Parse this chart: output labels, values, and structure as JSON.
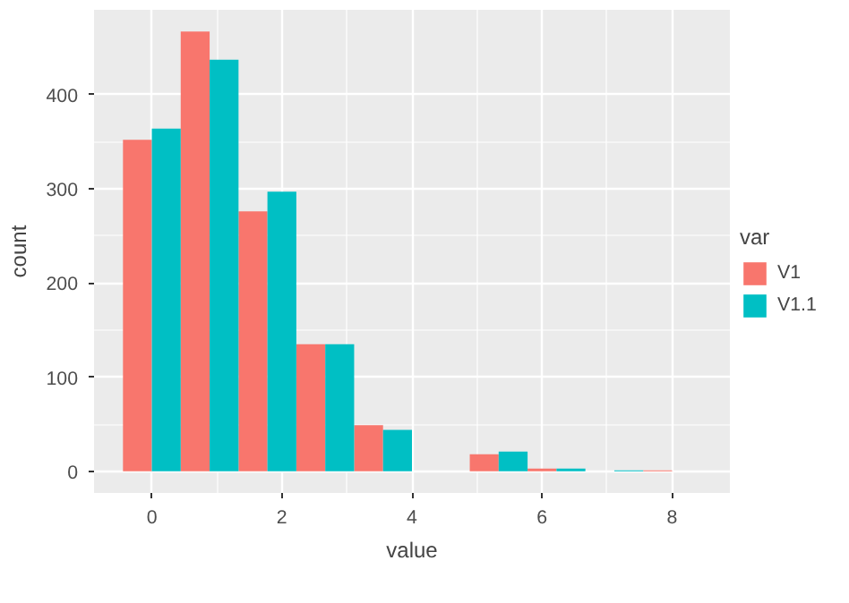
{
  "chart_data": {
    "type": "histogram",
    "xlabel": "value",
    "ylabel": "count",
    "legend_title": "var",
    "bins": [
      -0.444,
      0.444,
      1.333,
      2.222,
      3.111,
      4.0,
      4.889,
      5.778,
      6.667,
      7.556,
      8.444
    ],
    "series": [
      {
        "name": "V1",
        "color": "#f8766d",
        "values": [
          352,
          467,
          276,
          135,
          49,
          0,
          18,
          3,
          0,
          1
        ]
      },
      {
        "name": "V1.1",
        "color": "#00bfc4",
        "values": [
          364,
          437,
          297,
          135,
          44,
          0,
          21,
          3,
          1,
          0
        ]
      }
    ],
    "xlim": [
      -0.889,
      8.889
    ],
    "ylim": [
      -23,
      490
    ],
    "xticks": [
      0,
      2,
      4,
      6,
      8
    ],
    "yticks": [
      0,
      100,
      200,
      300,
      400
    ],
    "grid": true,
    "legend": "right"
  }
}
